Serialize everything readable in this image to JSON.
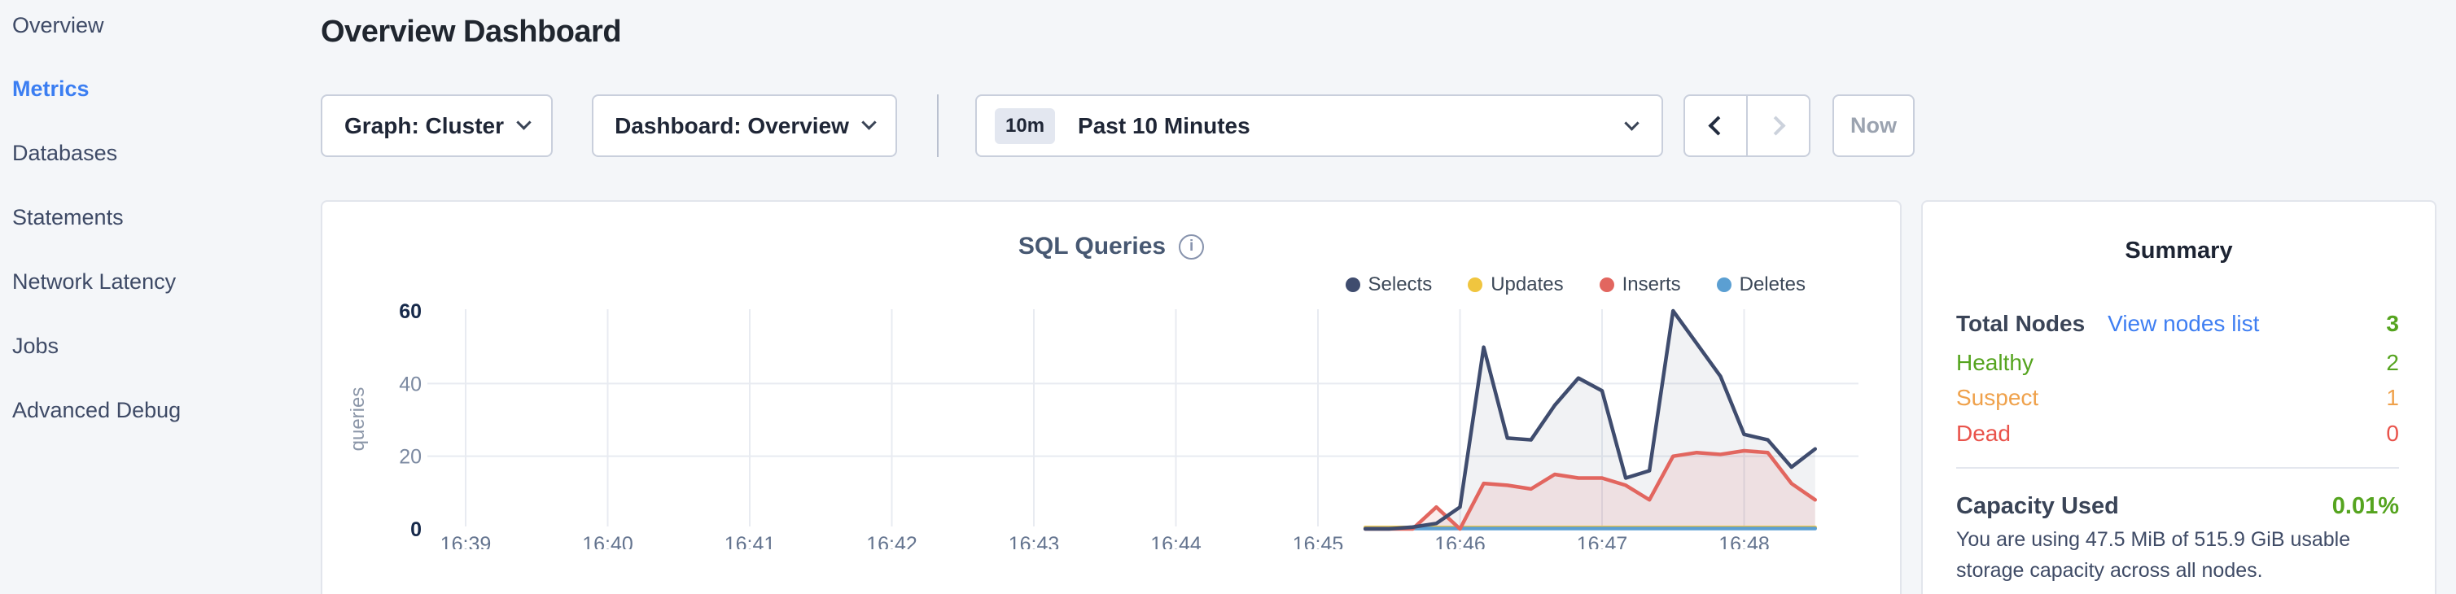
{
  "colors": {
    "background": "#f4f6f9",
    "active_nav_blue": "#3b7ef2",
    "link_blue": "#3e7ef2",
    "healthy_green": "#55a41f",
    "suspect_orange": "#efa14b",
    "dead_red": "#e9534b",
    "selects_navy": "#3f4c6e",
    "updates_yellow": "#f0c53f",
    "inserts_coral": "#e2665f",
    "deletes_blue": "#5b9fd2"
  },
  "icons": {
    "dropdown": "chevron-down-icon",
    "prev": "chevron-left-icon",
    "next": "chevron-right-icon",
    "chart_info": "info-icon"
  },
  "sidebar": {
    "items": [
      {
        "label": "Overview",
        "active": false
      },
      {
        "label": "Metrics",
        "active": true
      },
      {
        "label": "Databases",
        "active": false
      },
      {
        "label": "Statements",
        "active": false
      },
      {
        "label": "Network Latency",
        "active": false
      },
      {
        "label": "Jobs",
        "active": false
      },
      {
        "label": "Advanced Debug",
        "active": false
      }
    ]
  },
  "header": {
    "title": "Overview Dashboard"
  },
  "controls": {
    "graph_dropdown_label": "Graph: Cluster",
    "dashboard_dropdown_label": "Dashboard: Overview",
    "time_range_badge": "10m",
    "time_range_label": "Past 10 Minutes",
    "now_button_label": "Now"
  },
  "chart": {
    "title": "SQL Queries",
    "info_glyph": "i"
  },
  "chart_data": {
    "type": "area",
    "title": "SQL Queries",
    "xlabel": "",
    "ylabel": "queries",
    "ylim": [
      0,
      60
    ],
    "yticks": [
      0,
      20,
      40,
      60
    ],
    "bold_yticks": [
      0,
      60
    ],
    "xticks": [
      "16:39",
      "16:40",
      "16:41",
      "16:42",
      "16:43",
      "16:44",
      "16:45",
      "16:46",
      "16:47",
      "16:48"
    ],
    "x_axis_range": [
      "16:38:47",
      "16:48:48"
    ],
    "grid": true,
    "legend_position": "top-right",
    "x": [
      "16:45:20",
      "16:45:30",
      "16:45:40",
      "16:45:50",
      "16:46:00",
      "16:46:10",
      "16:46:20",
      "16:46:30",
      "16:46:40",
      "16:46:50",
      "16:47:00",
      "16:47:10",
      "16:47:20",
      "16:47:30",
      "16:47:40",
      "16:47:50",
      "16:48:00",
      "16:48:10",
      "16:48:20",
      "16:48:30"
    ],
    "series": [
      {
        "name": "Selects",
        "color": "#3f4c6e",
        "fill": "rgba(71,88,110,0.08)",
        "values": [
          0,
          0,
          0.5,
          1.5,
          6,
          50,
          25,
          24.5,
          34,
          41.5,
          38,
          14,
          16,
          60,
          51,
          42,
          26,
          24.5,
          17,
          22
        ]
      },
      {
        "name": "Updates",
        "color": "#f0c53f",
        "fill": null,
        "values": [
          0.4,
          0.4,
          0.4,
          0.4,
          0.4,
          0.4,
          0.4,
          0.4,
          0.4,
          0.4,
          0.4,
          0.4,
          0.4,
          0.4,
          0.4,
          0.4,
          0.4,
          0.4,
          0.4,
          0.4
        ]
      },
      {
        "name": "Inserts",
        "color": "#e2665f",
        "fill": "rgba(226,102,95,0.12)",
        "values": [
          0,
          0,
          0,
          6,
          0,
          12.5,
          12,
          11,
          15,
          14,
          14,
          12,
          8,
          20,
          21,
          20.5,
          21.5,
          21,
          12.5,
          8
        ]
      },
      {
        "name": "Deletes",
        "color": "#5b9fd2",
        "fill": null,
        "values": [
          0.1,
          0.1,
          0.1,
          0.1,
          0.1,
          0.1,
          0.1,
          0.1,
          0.1,
          0.1,
          0.1,
          0.1,
          0.1,
          0.1,
          0.1,
          0.1,
          0.1,
          0.1,
          0.1,
          0.1
        ]
      }
    ]
  },
  "summary": {
    "title": "Summary",
    "total_nodes_label": "Total Nodes",
    "view_nodes_link": "View nodes list",
    "total_nodes_value": "3",
    "healthy_label": "Healthy",
    "healthy_value": "2",
    "suspect_label": "Suspect",
    "suspect_value": "1",
    "dead_label": "Dead",
    "dead_value": "0",
    "capacity_label": "Capacity Used",
    "capacity_value": "0.01%",
    "capacity_description": "You are using 47.5 MiB of 515.9 GiB usable storage capacity across all nodes."
  }
}
